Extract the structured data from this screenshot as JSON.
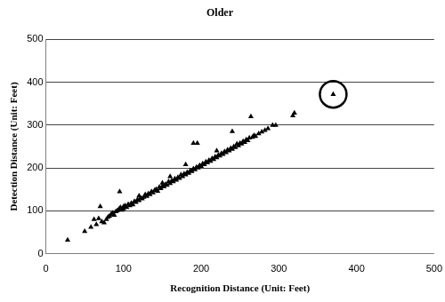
{
  "chart_data": {
    "type": "scatter",
    "title": "Older",
    "x_label": "Recognition Distance (Unit: Feet)",
    "y_label": "Detection Distance (Unit: Feet)",
    "xlim": [
      0,
      500
    ],
    "xticks": [
      0,
      100,
      200,
      300,
      400,
      500
    ],
    "ylim": [
      0,
      500
    ],
    "yticks": [
      0,
      100,
      200,
      300,
      400,
      500
    ],
    "grid": true,
    "color": "#000000",
    "marker": "triangle",
    "x": [
      28,
      50,
      58,
      62,
      65,
      68,
      70,
      72,
      75,
      78,
      80,
      82,
      84,
      86,
      88,
      90,
      92,
      94,
      95,
      96,
      98,
      100,
      100,
      102,
      104,
      106,
      108,
      110,
      112,
      114,
      116,
      118,
      120,
      120,
      122,
      124,
      126,
      128,
      130,
      132,
      134,
      136,
      138,
      140,
      142,
      144,
      146,
      148,
      150,
      150,
      152,
      154,
      156,
      158,
      160,
      160,
      162,
      164,
      166,
      168,
      170,
      172,
      174,
      176,
      178,
      180,
      180,
      182,
      184,
      186,
      188,
      190,
      190,
      192,
      194,
      195,
      196,
      198,
      200,
      202,
      204,
      206,
      208,
      210,
      212,
      214,
      216,
      218,
      220,
      220,
      222,
      224,
      226,
      228,
      230,
      232,
      234,
      236,
      238,
      240,
      240,
      242,
      244,
      246,
      248,
      250,
      252,
      254,
      256,
      258,
      260,
      262,
      264,
      266,
      268,
      270,
      274,
      278,
      282,
      286,
      292,
      296,
      318,
      320,
      370
    ],
    "values": [
      32,
      52,
      62,
      80,
      68,
      82,
      110,
      75,
      72,
      80,
      85,
      88,
      92,
      95,
      90,
      98,
      100,
      104,
      145,
      108,
      102,
      110,
      105,
      112,
      108,
      115,
      112,
      118,
      114,
      122,
      120,
      126,
      124,
      135,
      130,
      128,
      132,
      138,
      134,
      140,
      138,
      145,
      142,
      148,
      150,
      146,
      155,
      152,
      158,
      165,
      156,
      162,
      160,
      168,
      164,
      180,
      170,
      168,
      175,
      172,
      178,
      176,
      184,
      180,
      186,
      184,
      208,
      190,
      188,
      194,
      192,
      258,
      198,
      196,
      202,
      258,
      200,
      206,
      204,
      210,
      208,
      214,
      212,
      218,
      216,
      222,
      220,
      226,
      224,
      240,
      230,
      228,
      234,
      232,
      238,
      236,
      242,
      240,
      246,
      285,
      244,
      250,
      248,
      256,
      252,
      258,
      256,
      262,
      260,
      266,
      264,
      270,
      320,
      272,
      276,
      274,
      280,
      284,
      288,
      292,
      300,
      300,
      322,
      328,
      372
    ]
  }
}
